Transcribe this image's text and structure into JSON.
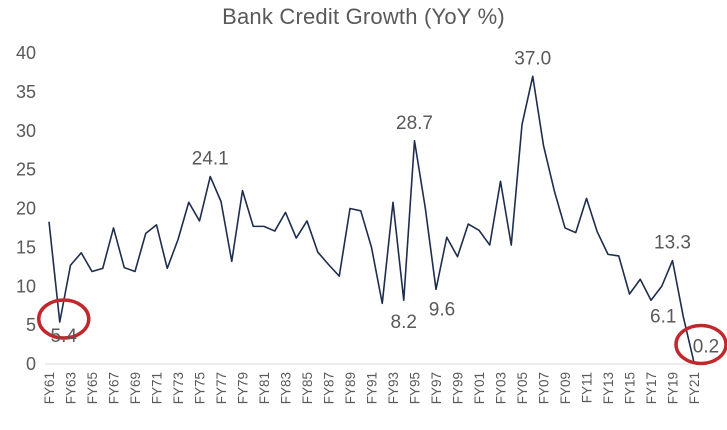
{
  "chart_data": {
    "type": "line",
    "title": "Bank Credit Growth (YoY %)",
    "xlabel": "",
    "ylabel": "",
    "ylim": [
      0,
      40
    ],
    "yticks": [
      0,
      5,
      10,
      15,
      20,
      25,
      30,
      35,
      40
    ],
    "grid": false,
    "legend": "none",
    "line_color": "#1f2d4d",
    "highlight_color": "#c0282d",
    "x": [
      "FY61",
      "FY62",
      "FY63",
      "FY64",
      "FY65",
      "FY66",
      "FY67",
      "FY68",
      "FY69",
      "FY70",
      "FY71",
      "FY72",
      "FY73",
      "FY74",
      "FY75",
      "FY76",
      "FY77",
      "FY78",
      "FY79",
      "FY80",
      "FY81",
      "FY82",
      "FY83",
      "FY84",
      "FY85",
      "FY86",
      "FY87",
      "FY88",
      "FY89",
      "FY90",
      "FY91",
      "FY92",
      "FY93",
      "FY94",
      "FY95",
      "FY96",
      "FY97",
      "FY98",
      "FY99",
      "FY00",
      "FY01",
      "FY02",
      "FY03",
      "FY04",
      "FY05",
      "FY06",
      "FY07",
      "FY08",
      "FY09",
      "FY10",
      "FY11",
      "FY12",
      "FY13",
      "FY14",
      "FY15",
      "FY16",
      "FY17",
      "FY18",
      "FY19",
      "FY20",
      "FY21"
    ],
    "x_tick_labels": [
      "FY61",
      "FY63",
      "FY65",
      "FY67",
      "FY69",
      "FY71",
      "FY73",
      "FY75",
      "FY77",
      "FY79",
      "FY81",
      "FY83",
      "FY85",
      "FY87",
      "FY89",
      "FY91",
      "FY93",
      "FY95",
      "FY97",
      "FY99",
      "FY01",
      "FY03",
      "FY05",
      "FY07",
      "FY09",
      "FY11",
      "FY13",
      "FY15",
      "FY17",
      "FY19",
      "FY21"
    ],
    "series": [
      {
        "values": [
          18.3,
          5.4,
          12.7,
          14.3,
          11.9,
          12.3,
          17.5,
          12.4,
          11.9,
          16.8,
          17.9,
          12.3,
          16.0,
          20.8,
          18.4,
          24.1,
          20.9,
          13.2,
          22.3,
          17.7,
          17.7,
          17.1,
          19.5,
          16.2,
          18.4,
          14.4,
          12.8,
          11.3,
          20.0,
          19.7,
          15.0,
          7.8,
          20.8,
          8.2,
          28.7,
          20.1,
          9.6,
          16.3,
          13.8,
          18.0,
          17.2,
          15.3,
          23.5,
          15.3,
          30.8,
          37.0,
          28.1,
          22.3,
          17.5,
          16.9,
          21.3,
          17.0,
          14.1,
          13.9,
          9.0,
          10.9,
          8.2,
          10.0,
          13.3,
          6.1,
          0.2
        ]
      }
    ],
    "data_labels": [
      {
        "x": "FY62",
        "text": "5.4"
      },
      {
        "x": "FY76",
        "text": "24.1"
      },
      {
        "x": "FY94",
        "text": "8.2"
      },
      {
        "x": "FY95",
        "text": "28.7"
      },
      {
        "x": "FY97",
        "text": "9.6"
      },
      {
        "x": "FY06",
        "text": "37.0"
      },
      {
        "x": "FY19",
        "text": "13.3"
      },
      {
        "x": "FY20",
        "text": "6.1"
      },
      {
        "x": "FY21",
        "text": "0.2"
      }
    ],
    "circled_points": [
      "FY62",
      "FY21"
    ]
  }
}
